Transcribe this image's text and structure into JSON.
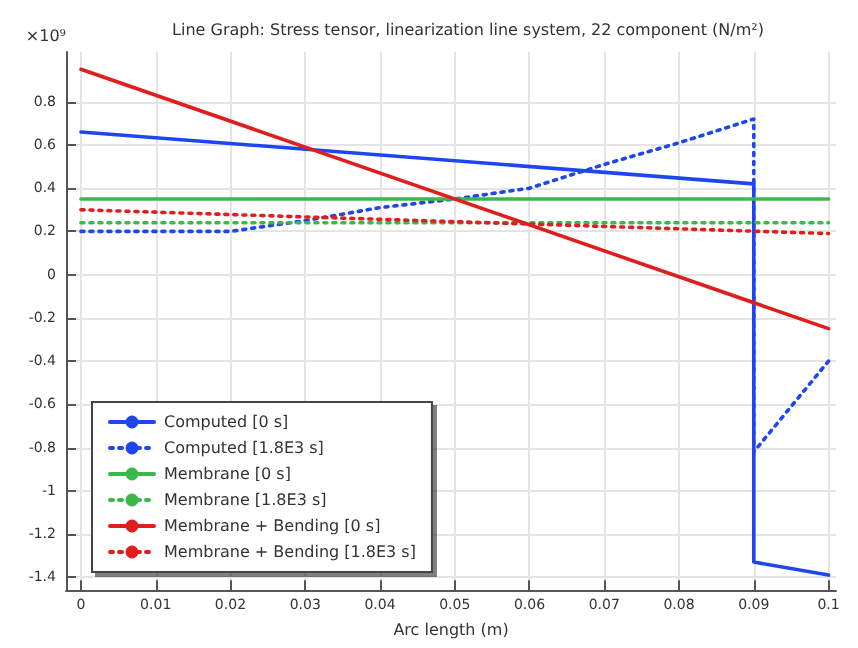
{
  "chart_data": {
    "type": "line",
    "title": "Line Graph: Stress tensor, linearization line system, 22 component (N/m²)",
    "xlabel": "Arc length (m)",
    "ylabel": "×10⁹",
    "xlim": [
      -0.002,
      0.101
    ],
    "xticks": [
      0,
      0.01,
      0.02,
      0.03,
      0.04,
      0.05,
      0.06,
      0.07,
      0.08,
      0.09,
      0.1
    ],
    "ylim": [
      -1.46,
      1.03
    ],
    "yticks": [
      -1.4,
      -1.2,
      -1,
      -0.8,
      -0.6,
      -0.4,
      -0.2,
      0,
      0.2,
      0.4,
      0.6,
      0.8
    ],
    "grid": true,
    "legend": "bottom left",
    "marker": "none",
    "series": [
      {
        "name": "Computed [0 s]",
        "color": "#1e46f0",
        "line_style": "solid",
        "x": [
          0,
          0.09,
          0.09,
          0.1
        ],
        "values": [
          0.66,
          0.42,
          -1.33,
          -1.39
        ]
      },
      {
        "name": "Computed [1.8E3 s]",
        "color": "#1e46f0",
        "line_style": "dotted",
        "x": [
          0,
          0.02,
          0.03,
          0.04,
          0.05,
          0.06,
          0.07,
          0.08,
          0.09,
          0.09,
          0.1
        ],
        "values": [
          0.2,
          0.2,
          0.25,
          0.31,
          0.35,
          0.4,
          0.51,
          0.61,
          0.72,
          -0.82,
          -0.4
        ]
      },
      {
        "name": "Membrane [0 s]",
        "color": "#3cb84a",
        "line_style": "solid",
        "x": [
          0,
          0.1
        ],
        "values": [
          0.35,
          0.35
        ]
      },
      {
        "name": "Membrane [1.8E3 s]",
        "color": "#3cb84a",
        "line_style": "dotted",
        "x": [
          0,
          0.1
        ],
        "values": [
          0.24,
          0.24
        ]
      },
      {
        "name": "Membrane + Bending [0 s]",
        "color": "#e01e1e",
        "line_style": "solid",
        "x": [
          0,
          0.1
        ],
        "values": [
          0.95,
          -0.25
        ]
      },
      {
        "name": "Membrane + Bending [1.8E3 s]",
        "color": "#e01e1e",
        "line_style": "dotted",
        "x": [
          0,
          0.1
        ],
        "values": [
          0.3,
          0.19
        ]
      }
    ]
  }
}
